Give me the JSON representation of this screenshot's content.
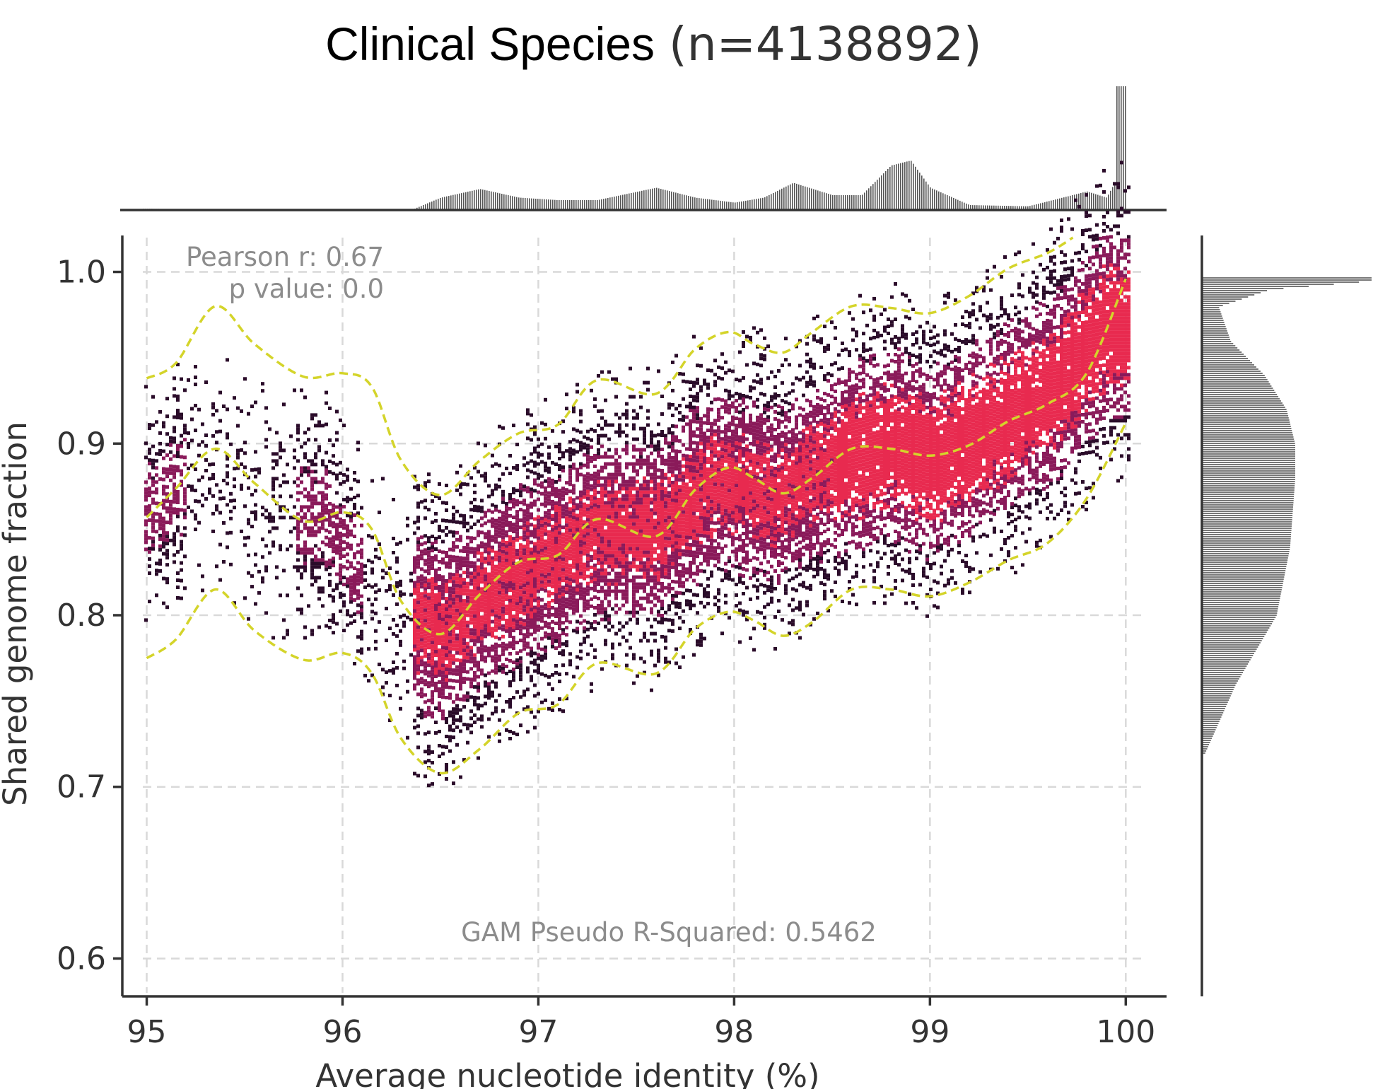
{
  "title": "Clinical Species",
  "title_count": "(n=4138892)",
  "annotations": {
    "pearson": "Pearson r: 0.67",
    "pvalue": "p value: 0.0",
    "gam": "GAM Pseudo R-Squared: 0.5462"
  },
  "colors": {
    "density_low": "#2b0c2a",
    "density_mid": "#8a1a5a",
    "density_high": "#e82a4f",
    "gam_lines": "#d4d42a",
    "marginal_bars": "#555555"
  },
  "chart_data": {
    "type": "heatmap",
    "subtype": "joint density plot with marginal histograms and GAM quantile curves",
    "title": "Clinical Species",
    "subtitle": "(n=4138892)",
    "xlabel": "Average nucleotide identity (%)",
    "ylabel": "Shared genome fraction",
    "xlim": [
      94.98,
      100.1
    ],
    "ylim": [
      0.58,
      1.02
    ],
    "xticks": [
      "95",
      "96",
      "97",
      "98",
      "99",
      "100"
    ],
    "yticks": [
      "0.6",
      "0.7",
      "0.8",
      "0.9",
      "1.0"
    ],
    "grid": true,
    "gam_curves": [
      {
        "x": [
          95.0,
          95.15,
          95.35,
          95.55,
          95.8,
          96.0,
          96.15,
          96.3,
          96.5,
          96.7,
          96.9,
          97.1,
          97.3,
          97.6,
          97.8,
          97.97,
          98.1,
          98.25,
          98.4,
          98.6,
          98.8,
          99.0,
          99.2,
          99.4,
          99.6,
          99.8,
          100.0
        ],
        "y": [
          0.775,
          0.786,
          0.815,
          0.791,
          0.774,
          0.778,
          0.766,
          0.728,
          0.708,
          0.722,
          0.743,
          0.748,
          0.772,
          0.766,
          0.792,
          0.802,
          0.797,
          0.788,
          0.796,
          0.815,
          0.815,
          0.811,
          0.819,
          0.832,
          0.842,
          0.868,
          0.912
        ]
      },
      {
        "x": [
          95.0,
          95.15,
          95.35,
          95.55,
          95.8,
          96.0,
          96.15,
          96.3,
          96.5,
          96.7,
          96.9,
          97.1,
          97.3,
          97.6,
          97.8,
          97.97,
          98.1,
          98.25,
          98.4,
          98.6,
          98.8,
          99.0,
          99.2,
          99.4,
          99.6,
          99.8,
          100.0
        ],
        "y": [
          0.857,
          0.874,
          0.897,
          0.877,
          0.855,
          0.86,
          0.85,
          0.808,
          0.789,
          0.812,
          0.831,
          0.835,
          0.856,
          0.846,
          0.873,
          0.886,
          0.88,
          0.871,
          0.88,
          0.897,
          0.897,
          0.893,
          0.899,
          0.913,
          0.923,
          0.941,
          0.996
        ]
      },
      {
        "x": [
          95.0,
          95.15,
          95.35,
          95.55,
          95.8,
          96.0,
          96.15,
          96.3,
          96.5,
          96.7,
          96.9,
          97.1,
          97.3,
          97.6,
          97.8,
          97.97,
          98.1,
          98.25,
          98.4,
          98.6,
          98.8,
          99.0,
          99.2,
          99.4,
          99.6,
          99.73
        ],
        "y": [
          0.938,
          0.947,
          0.98,
          0.958,
          0.939,
          0.941,
          0.933,
          0.89,
          0.87,
          0.89,
          0.906,
          0.911,
          0.937,
          0.929,
          0.955,
          0.965,
          0.958,
          0.953,
          0.965,
          0.98,
          0.979,
          0.976,
          0.986,
          1.002,
          1.011,
          1.02
        ]
      }
    ],
    "density_ridge": {
      "x": [
        95.0,
        95.3,
        95.6,
        95.9,
        96.2,
        96.5,
        96.7,
        97.0,
        97.3,
        97.6,
        97.9,
        98.2,
        98.5,
        98.8,
        99.0,
        99.3,
        99.6,
        99.9
      ],
      "y": [
        0.86,
        0.89,
        0.86,
        0.86,
        0.81,
        0.79,
        0.81,
        0.83,
        0.85,
        0.85,
        0.88,
        0.87,
        0.89,
        0.9,
        0.89,
        0.91,
        0.93,
        0.97
      ]
    },
    "marginal_x_histogram": {
      "x": [
        95.0,
        95.5,
        96.0,
        96.35,
        96.5,
        96.7,
        96.9,
        97.1,
        97.3,
        97.6,
        97.8,
        98.0,
        98.15,
        98.3,
        98.5,
        98.65,
        98.8,
        98.9,
        99.0,
        99.2,
        99.5,
        99.8,
        99.9,
        99.97,
        100.0
      ],
      "density": [
        0.01,
        0,
        0,
        0,
        0.1,
        0.17,
        0.1,
        0.08,
        0.08,
        0.18,
        0.1,
        0.06,
        0.1,
        0.22,
        0.12,
        0.12,
        0.36,
        0.4,
        0.18,
        0.04,
        0.03,
        0.15,
        0.1,
        0.3,
        1.0
      ]
    },
    "marginal_y_histogram": {
      "y": [
        0.72,
        0.76,
        0.8,
        0.84,
        0.88,
        0.9,
        0.92,
        0.94,
        0.96,
        0.98,
        0.99,
        0.995
      ],
      "density": [
        0.02,
        0.2,
        0.44,
        0.52,
        0.55,
        0.55,
        0.5,
        0.37,
        0.17,
        0.1,
        0.4,
        1.0
      ]
    }
  }
}
